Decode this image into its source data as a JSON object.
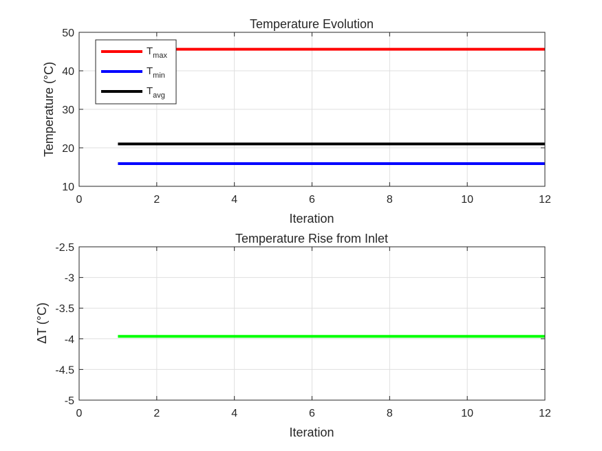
{
  "chart_data": [
    {
      "type": "line",
      "title": "Temperature Evolution",
      "xlabel": "Iteration",
      "ylabel": "Temperature (°C)",
      "xlim": [
        0,
        12
      ],
      "ylim": [
        10,
        50
      ],
      "xticks": [
        "0",
        "2",
        "4",
        "6",
        "8",
        "10",
        "12"
      ],
      "yticks": [
        "10",
        "20",
        "30",
        "40",
        "50"
      ],
      "grid": true,
      "legend_position": "top-left",
      "series": [
        {
          "name": "T",
          "subscript": "max",
          "color": "#ff0000",
          "x": [
            1,
            12
          ],
          "y": [
            45.6,
            45.6
          ]
        },
        {
          "name": "T",
          "subscript": "min",
          "color": "#0000ff",
          "x": [
            1,
            12
          ],
          "y": [
            15.9,
            15.9
          ]
        },
        {
          "name": "T",
          "subscript": "avg",
          "color": "#000000",
          "x": [
            1,
            12
          ],
          "y": [
            21.0,
            21.0
          ]
        }
      ]
    },
    {
      "type": "line",
      "title": "Temperature Rise from Inlet",
      "xlabel": "Iteration",
      "ylabel": "ΔT (°C)",
      "xlim": [
        0,
        12
      ],
      "ylim": [
        -5,
        -2.5
      ],
      "xticks": [
        "0",
        "2",
        "4",
        "6",
        "8",
        "10",
        "12"
      ],
      "yticks": [
        "-5",
        "-4.5",
        "-4",
        "-3.5",
        "-3",
        "-2.5"
      ],
      "grid": true,
      "series": [
        {
          "color": "#00ff00",
          "x": [
            1,
            12
          ],
          "y": [
            -3.96,
            -3.96
          ]
        }
      ]
    }
  ]
}
